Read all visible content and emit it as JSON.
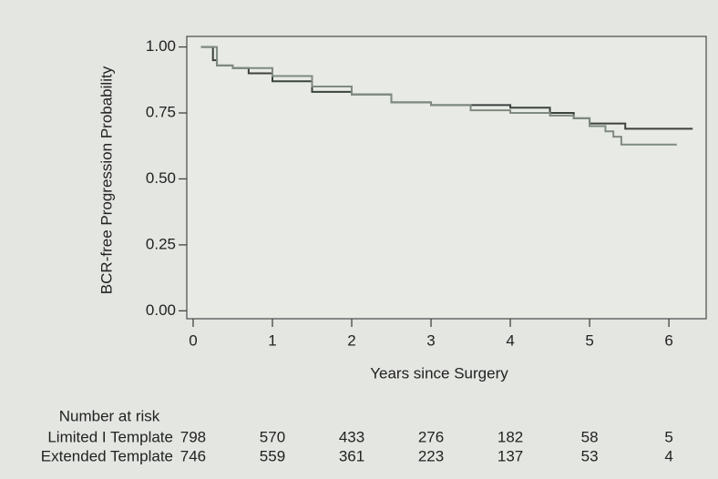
{
  "chart_data": {
    "type": "km",
    "step": true,
    "ylabel": "BCR-free Progression Probability",
    "xlabel": "Years since Surgery",
    "xlim": [
      -0.08,
      6.47
    ],
    "ylim": [
      -0.03,
      1.04
    ],
    "xticks": [
      0,
      1,
      2,
      3,
      4,
      5,
      6
    ],
    "yticks": [
      {
        "value": 0,
        "label": "0.00"
      },
      {
        "value": 0.25,
        "label": "0.25"
      },
      {
        "value": 0.5,
        "label": "0.50"
      },
      {
        "value": 0.75,
        "label": "0.75"
      },
      {
        "value": 1,
        "label": "1.00"
      }
    ],
    "series": [
      {
        "name": "Limited I Template",
        "color": "#3b423c",
        "x": [
          0.1,
          0.2,
          0.25,
          0.3,
          0.5,
          0.7,
          1,
          1.5,
          2,
          2.5,
          3,
          3.5,
          4,
          4.5,
          4.8,
          5,
          5.45,
          6.3
        ],
        "values": [
          1,
          1,
          0.95,
          0.93,
          0.92,
          0.9,
          0.87,
          0.83,
          0.82,
          0.79,
          0.78,
          0.78,
          0.77,
          0.75,
          0.73,
          0.71,
          0.69,
          0.69
        ]
      },
      {
        "name": "Extended Template",
        "color": "#7f8a7f",
        "x": [
          0.1,
          0.2,
          0.3,
          0.5,
          1,
          1.5,
          2,
          2.5,
          3,
          3.5,
          4,
          4.5,
          4.8,
          5,
          5.2,
          5.3,
          5.4,
          6.1
        ],
        "values": [
          1,
          1,
          0.93,
          0.92,
          0.89,
          0.85,
          0.82,
          0.79,
          0.78,
          0.76,
          0.75,
          0.74,
          0.73,
          0.7,
          0.68,
          0.66,
          0.63,
          0.63
        ]
      }
    ],
    "risk_table": {
      "title": "Number at risk",
      "times": [
        0,
        1,
        2,
        3,
        4,
        5,
        6
      ],
      "rows": [
        {
          "label": "Limited I Template",
          "values": [
            798,
            570,
            433,
            276,
            182,
            58,
            5
          ]
        },
        {
          "label": "Extended Template",
          "values": [
            746,
            559,
            361,
            223,
            137,
            53,
            4
          ]
        }
      ]
    }
  }
}
